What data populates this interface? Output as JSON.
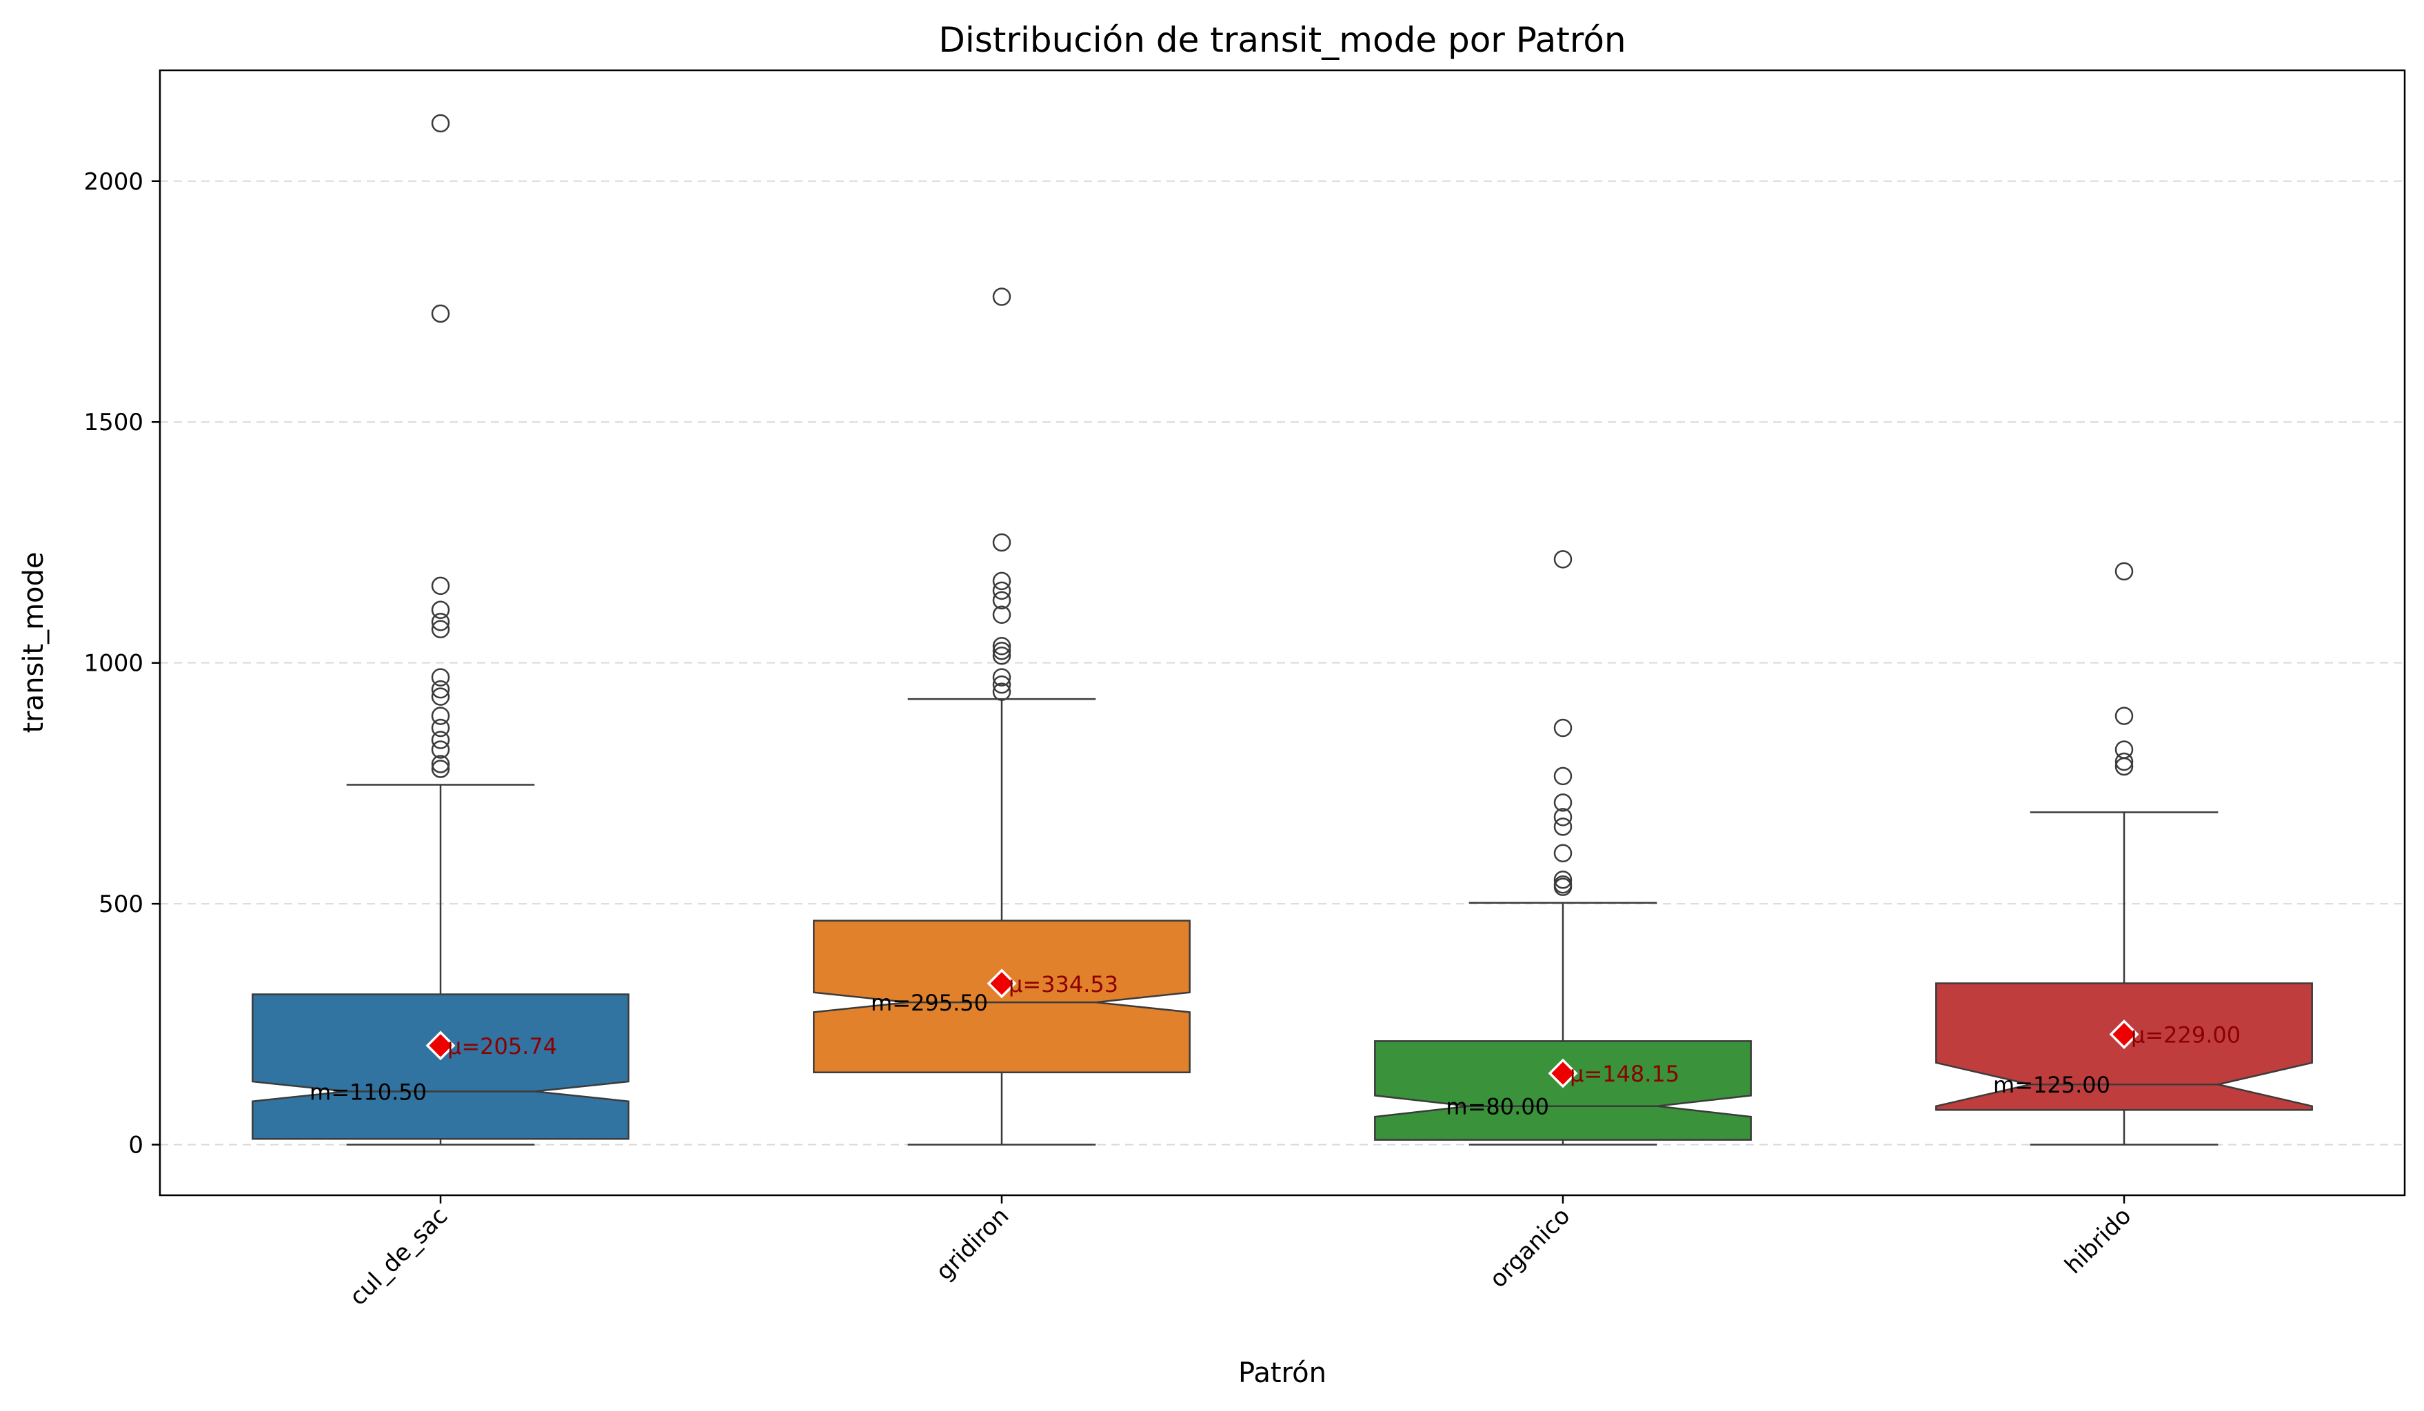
{
  "chart_data": {
    "type": "box",
    "title": "Distribución de transit_mode por Patrón",
    "xlabel": "Patrón",
    "ylabel": "transit_mode",
    "ylim": [
      -105,
      2230
    ],
    "yticks": [
      0,
      500,
      1000,
      1500,
      2000
    ],
    "grid": "y-dashed",
    "notched": true,
    "categories": [
      "cul_de_sac",
      "gridiron",
      "organico",
      "hibrido"
    ],
    "boxes": [
      {
        "category": "cul_de_sac",
        "color": "#3274a1",
        "whisker_low": 0,
        "q1": 12,
        "median": 110.5,
        "q3": 312,
        "whisker_high": 747,
        "notch_low": 90,
        "notch_high": 131,
        "mean": 205.74,
        "median_label": "m=110.50",
        "mean_label": "μ=205.74",
        "outliers": [
          2120,
          1725,
          1160,
          1110,
          1085,
          1070,
          970,
          945,
          930,
          890,
          865,
          840,
          820,
          790,
          780
        ]
      },
      {
        "category": "gridiron",
        "color": "#e1812c",
        "whisker_low": 0,
        "q1": 150,
        "median": 295.5,
        "q3": 465,
        "whisker_high": 925,
        "notch_low": 275,
        "notch_high": 316,
        "mean": 334.53,
        "median_label": "m=295.50",
        "mean_label": "μ=334.53",
        "outliers": [
          1760,
          1250,
          1170,
          1150,
          1130,
          1100,
          1035,
          1025,
          1015,
          970,
          955,
          940
        ]
      },
      {
        "category": "organico",
        "color": "#3a923a",
        "whisker_low": 0,
        "q1": 10,
        "median": 80,
        "q3": 215,
        "whisker_high": 502,
        "notch_low": 58,
        "notch_high": 102,
        "mean": 148.15,
        "median_label": "m=80.00",
        "mean_label": "μ=148.15",
        "outliers": [
          1215,
          865,
          765,
          710,
          680,
          660,
          605,
          550,
          540,
          535
        ]
      },
      {
        "category": "hibrido",
        "color": "#c03d3e",
        "whisker_low": 0,
        "q1": 72,
        "median": 125,
        "q3": 335,
        "whisker_high": 690,
        "notch_low": 80,
        "notch_high": 170,
        "mean": 229.0,
        "median_label": "m=125.00",
        "mean_label": "μ=229.00",
        "outliers": [
          1190,
          890,
          820,
          795,
          785
        ]
      }
    ]
  }
}
